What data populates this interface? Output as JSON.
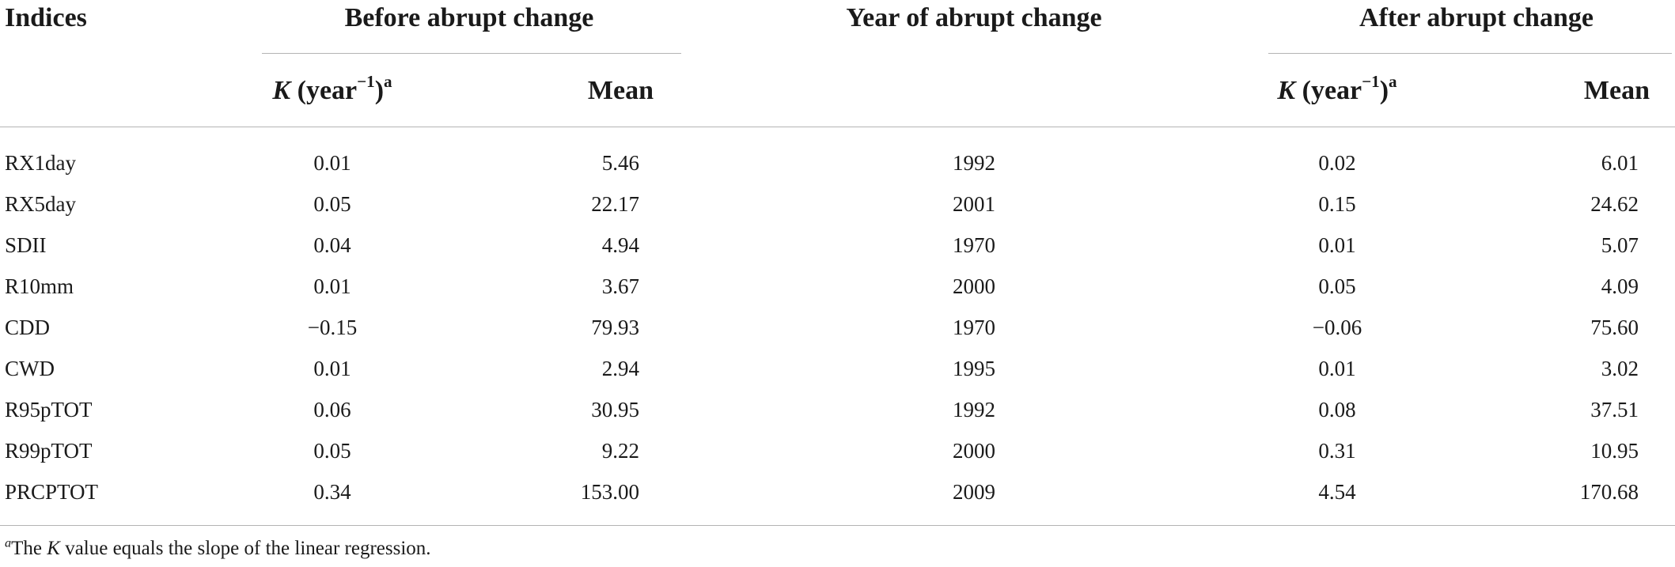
{
  "headers": {
    "indices": "Indices",
    "before": "Before abrupt change",
    "year": "Year of abrupt change",
    "after": "After abrupt change"
  },
  "subheaders": {
    "k_symbol": "K",
    "k_unit_open": " (year",
    "k_exponent": "−1",
    "k_unit_close": ")",
    "k_note": "a",
    "mean": "Mean"
  },
  "rows": [
    {
      "index": "RX1day",
      "k_before": "0.01",
      "mean_before": "5.46",
      "year": "1992",
      "k_after": "0.02",
      "mean_after": "6.01"
    },
    {
      "index": "RX5day",
      "k_before": "0.05",
      "mean_before": "22.17",
      "year": "2001",
      "k_after": "0.15",
      "mean_after": "24.62"
    },
    {
      "index": "SDII",
      "k_before": "0.04",
      "mean_before": "4.94",
      "year": "1970",
      "k_after": "0.01",
      "mean_after": "5.07"
    },
    {
      "index": "R10mm",
      "k_before": "0.01",
      "mean_before": "3.67",
      "year": "2000",
      "k_after": "0.05",
      "mean_after": "4.09"
    },
    {
      "index": "CDD",
      "k_before": "−0.15",
      "mean_before": "79.93",
      "year": "1970",
      "k_after": "−0.06",
      "mean_after": "75.60"
    },
    {
      "index": "CWD",
      "k_before": "0.01",
      "mean_before": "2.94",
      "year": "1995",
      "k_after": "0.01",
      "mean_after": "3.02"
    },
    {
      "index": "R95pTOT",
      "k_before": "0.06",
      "mean_before": "30.95",
      "year": "1992",
      "k_after": "0.08",
      "mean_after": "37.51"
    },
    {
      "index": "R99pTOT",
      "k_before": "0.05",
      "mean_before": "9.22",
      "year": "2000",
      "k_after": "0.31",
      "mean_after": "10.95"
    },
    {
      "index": "PRCPTOT",
      "k_before": "0.34",
      "mean_before": "153.00",
      "year": "2009",
      "k_after": "4.54",
      "mean_after": "170.68"
    }
  ],
  "footnote": {
    "mark": "a",
    "text_before": "The ",
    "symbol": "K",
    "text_after": " value equals the slope of the linear regression."
  }
}
